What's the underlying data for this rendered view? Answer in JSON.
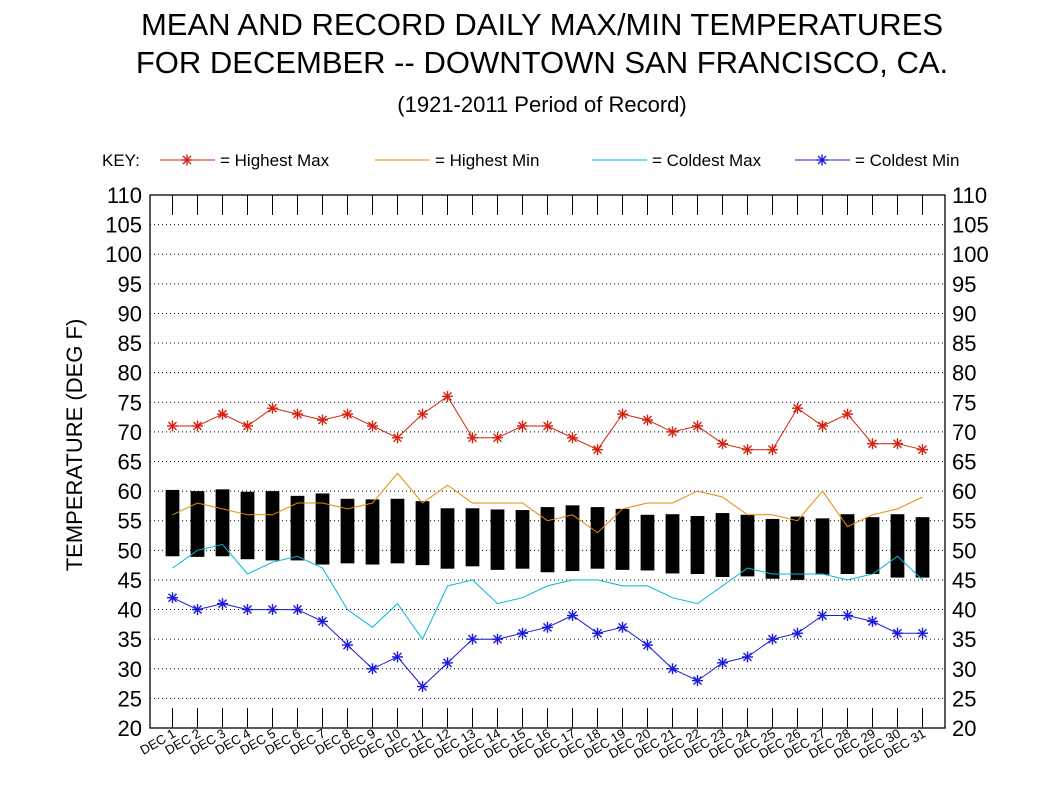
{
  "chart_data": {
    "type": "line",
    "title_line1": "MEAN AND RECORD DAILY MAX/MIN TEMPERATURES",
    "title_line2": "FOR DECEMBER -- DOWNTOWN SAN FRANCISCO, CA.",
    "subtitle": "(1921-2011 Period of Record)",
    "ylabel": "TEMPERATURE (DEG F)",
    "ylim": [
      20,
      110
    ],
    "y_ticks": [
      20,
      25,
      30,
      35,
      40,
      45,
      50,
      55,
      60,
      65,
      70,
      75,
      80,
      85,
      90,
      95,
      100,
      105,
      110
    ],
    "grid": true,
    "legend": {
      "label": "KEY:",
      "position": "top",
      "entries": [
        {
          "name": "= Highest Max",
          "color": "#d4230f",
          "marker": "star"
        },
        {
          "name": "= Highest Min",
          "color": "#e38b00",
          "marker": "none"
        },
        {
          "name": "= Coldest Max",
          "color": "#00b8d4",
          "marker": "none"
        },
        {
          "name": "= Coldest Min",
          "color": "#1a1adc",
          "marker": "star"
        }
      ]
    },
    "categories": [
      "DEC 1",
      "DEC 2",
      "DEC 3",
      "DEC 4",
      "DEC 5",
      "DEC 6",
      "DEC 7",
      "DEC 8",
      "DEC 9",
      "DEC 10",
      "DEC 11",
      "DEC 12",
      "DEC 13",
      "DEC 14",
      "DEC 15",
      "DEC 16",
      "DEC 17",
      "DEC 18",
      "DEC 19",
      "DEC 20",
      "DEC 21",
      "DEC 22",
      "DEC 23",
      "DEC 24",
      "DEC 25",
      "DEC 26",
      "DEC 27",
      "DEC 28",
      "DEC 29",
      "DEC 30",
      "DEC 31"
    ],
    "series": [
      {
        "name": "= Highest Max",
        "values": [
          71,
          71,
          73,
          71,
          74,
          73,
          72,
          73,
          71,
          69,
          73,
          76,
          69,
          69,
          71,
          71,
          69,
          67,
          73,
          72,
          70,
          71,
          68,
          67,
          67,
          74,
          71,
          73,
          68,
          68,
          67
        ]
      },
      {
        "name": "= Highest Min",
        "values": [
          56,
          58,
          57,
          56,
          56,
          58,
          58,
          57,
          58,
          63,
          58,
          61,
          58,
          58,
          58,
          55,
          56,
          53,
          57,
          58,
          58,
          60,
          59,
          56,
          56,
          55,
          60,
          54,
          56,
          57,
          59
        ]
      },
      {
        "name": "= Coldest Max",
        "values": [
          47,
          50,
          51,
          46,
          48,
          49,
          47,
          40,
          37,
          41,
          35,
          44,
          45,
          41,
          42,
          44,
          45,
          45,
          44,
          44,
          42,
          41,
          44,
          47,
          46,
          46,
          46,
          45,
          46,
          49,
          45
        ]
      },
      {
        "name": "= Coldest Min",
        "values": [
          42,
          40,
          41,
          40,
          40,
          40,
          38,
          34,
          30,
          32,
          27,
          31,
          35,
          35,
          36,
          37,
          39,
          36,
          37,
          34,
          30,
          28,
          31,
          32,
          35,
          36,
          39,
          39,
          38,
          36,
          36
        ]
      }
    ],
    "mean_bars": {
      "mean_max": [
        60.2,
        60.0,
        60.3,
        59.9,
        60.0,
        59.2,
        59.6,
        58.7,
        58.6,
        58.7,
        58.3,
        57.1,
        57.1,
        56.9,
        56.8,
        57.3,
        57.6,
        57.3,
        57.0,
        56.0,
        56.1,
        55.8,
        56.3,
        56.0,
        55.3,
        55.7,
        55.4,
        56.1,
        55.6,
        56.1,
        55.6
      ],
      "mean_min": [
        49.0,
        48.9,
        49.0,
        48.5,
        48.3,
        48.3,
        47.6,
        47.8,
        47.6,
        47.8,
        47.5,
        46.9,
        47.3,
        46.7,
        46.9,
        46.3,
        46.5,
        46.9,
        46.7,
        46.6,
        46.1,
        46.0,
        45.5,
        45.6,
        45.2,
        45.0,
        45.9,
        46.0,
        46.0,
        45.4,
        45.4
      ]
    }
  }
}
